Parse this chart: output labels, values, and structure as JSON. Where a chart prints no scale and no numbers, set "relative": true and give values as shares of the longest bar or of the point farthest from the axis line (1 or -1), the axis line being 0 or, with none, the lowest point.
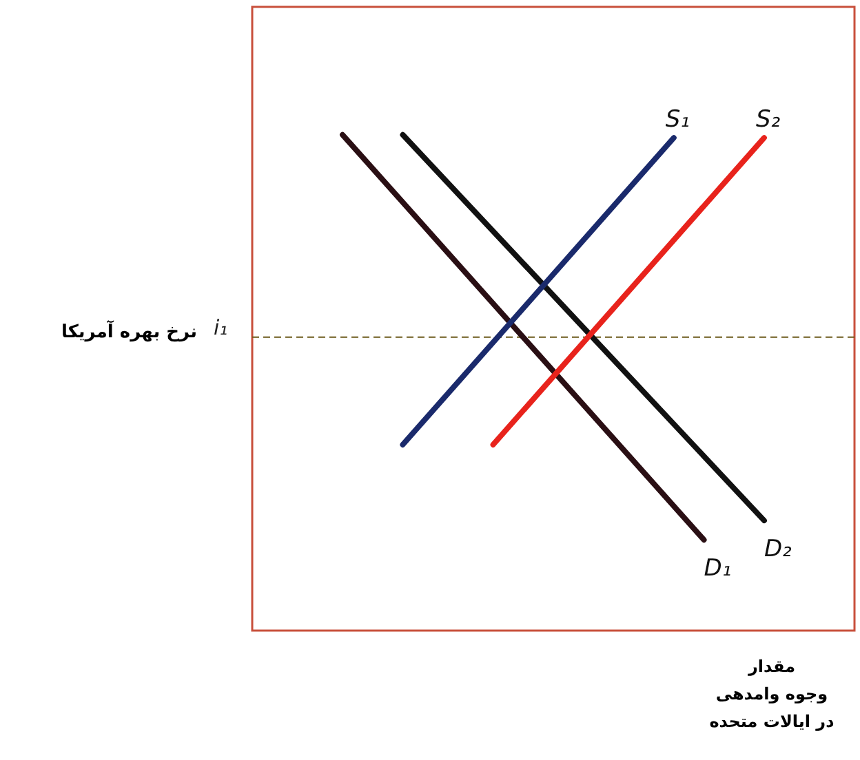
{
  "chart_data": {
    "type": "line",
    "relative": true,
    "categories": [
      null,
      null,
      null,
      null,
      null,
      null,
      null,
      null,
      null,
      null,
      null,
      null,
      null,
      null,
      null,
      null,
      null,
      null,
      null,
      null,
      null
    ],
    "ylabel": "نرخ بهره آمریکا",
    "xlabel": "مقدار\nوجوه وامدهی\nدر ایالات متحده",
    "series": [
      {
        "name": "D₁",
        "color": "#2a0f14",
        "values": [
          null,
          null,
          null,
          1,
          null,
          null,
          null,
          null,
          null,
          null,
          null,
          null,
          null,
          null,
          null,
          0.183,
          null,
          null,
          null,
          null,
          null
        ]
      },
      {
        "name": "D₂",
        "color": "#111111",
        "values": [
          null,
          null,
          null,
          null,
          null,
          1,
          null,
          null,
          null,
          null,
          null,
          null,
          null,
          null,
          null,
          null,
          null,
          0.222,
          null,
          null,
          null
        ]
      },
      {
        "name": "S₁",
        "color": "#1a2a6c",
        "values": [
          null,
          null,
          null,
          null,
          null,
          0.375,
          null,
          null,
          null,
          null,
          null,
          null,
          null,
          null,
          0.994,
          null,
          null,
          null,
          null,
          null,
          null
        ]
      },
      {
        "name": "S₂",
        "color": "#e8231c",
        "values": [
          null,
          null,
          null,
          null,
          null,
          null,
          null,
          null,
          0.375,
          null,
          null,
          null,
          null,
          null,
          null,
          null,
          null,
          0.994,
          null,
          null,
          null
        ]
      }
    ],
    "ref_lines": [
      {
        "axis": "y",
        "value": 0.592,
        "label": "i₁",
        "line_style": "dashed",
        "color": "#6b5a1a"
      }
    ]
  }
}
